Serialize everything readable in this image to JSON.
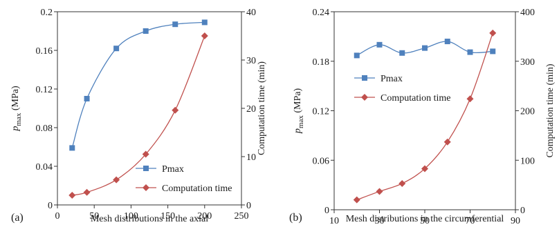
{
  "chart_data": [
    {
      "type": "line",
      "panel_label": "(a)",
      "xlabel": "Mesh distributions in the axial",
      "ylabel": {
        "main": "p",
        "sub": "max",
        "unit": " (MPa)"
      },
      "ylabel_right": "Computation time (min)",
      "xlim": [
        0,
        250
      ],
      "ylim": [
        0,
        0.2
      ],
      "ylim_right": [
        0,
        40
      ],
      "xticks": [
        "0",
        "50",
        "100",
        "150",
        "200",
        "250"
      ],
      "yticks": [
        "0",
        "0.04",
        "0.08",
        "0.12",
        "0.16",
        "0.2"
      ],
      "yticks_right": [
        "0",
        "10",
        "20",
        "30",
        "40"
      ],
      "grid": false,
      "legend_position": "bottom-right",
      "series": [
        {
          "name": "Pmax",
          "axis": "left",
          "color": "#4f81bd",
          "marker": "square",
          "x": [
            20,
            40,
            80,
            120,
            160,
            200
          ],
          "y": [
            0.059,
            0.11,
            0.162,
            0.18,
            0.187,
            0.189
          ]
        },
        {
          "name": "Computation time",
          "axis": "right",
          "color": "#c0504d",
          "marker": "diamond",
          "x": [
            20,
            40,
            80,
            120,
            160,
            200
          ],
          "y": [
            2.0,
            2.6,
            5.2,
            10.5,
            19.6,
            35.0
          ]
        }
      ]
    },
    {
      "type": "line",
      "panel_label": "(b)",
      "xlabel": "Mesh distributions in the circumferential",
      "ylabel": {
        "main": "p",
        "sub": "max",
        "unit": " (MPa)"
      },
      "ylabel_right": "Computation time (min)",
      "xlim": [
        10,
        90
      ],
      "ylim": [
        0,
        0.24
      ],
      "ylim_right": [
        0,
        400
      ],
      "xticks": [
        "10",
        "30",
        "50",
        "70",
        "90"
      ],
      "yticks": [
        "0",
        "0.06",
        "0.12",
        "0.18",
        "0.24"
      ],
      "yticks_right": [
        "0",
        "100",
        "200",
        "300",
        "400"
      ],
      "grid": false,
      "legend_position": "top-left",
      "series": [
        {
          "name": "Pmax",
          "axis": "left",
          "color": "#4f81bd",
          "marker": "square",
          "x": [
            20,
            30,
            40,
            50,
            60,
            70,
            80
          ],
          "y": [
            0.187,
            0.2,
            0.19,
            0.196,
            0.204,
            0.191,
            0.192
          ]
        },
        {
          "name": "Computation time",
          "axis": "right",
          "color": "#c0504d",
          "marker": "diamond",
          "x": [
            20,
            30,
            40,
            50,
            60,
            70,
            80
          ],
          "y": [
            20,
            37,
            53,
            83,
            137,
            224,
            357
          ]
        }
      ]
    }
  ]
}
